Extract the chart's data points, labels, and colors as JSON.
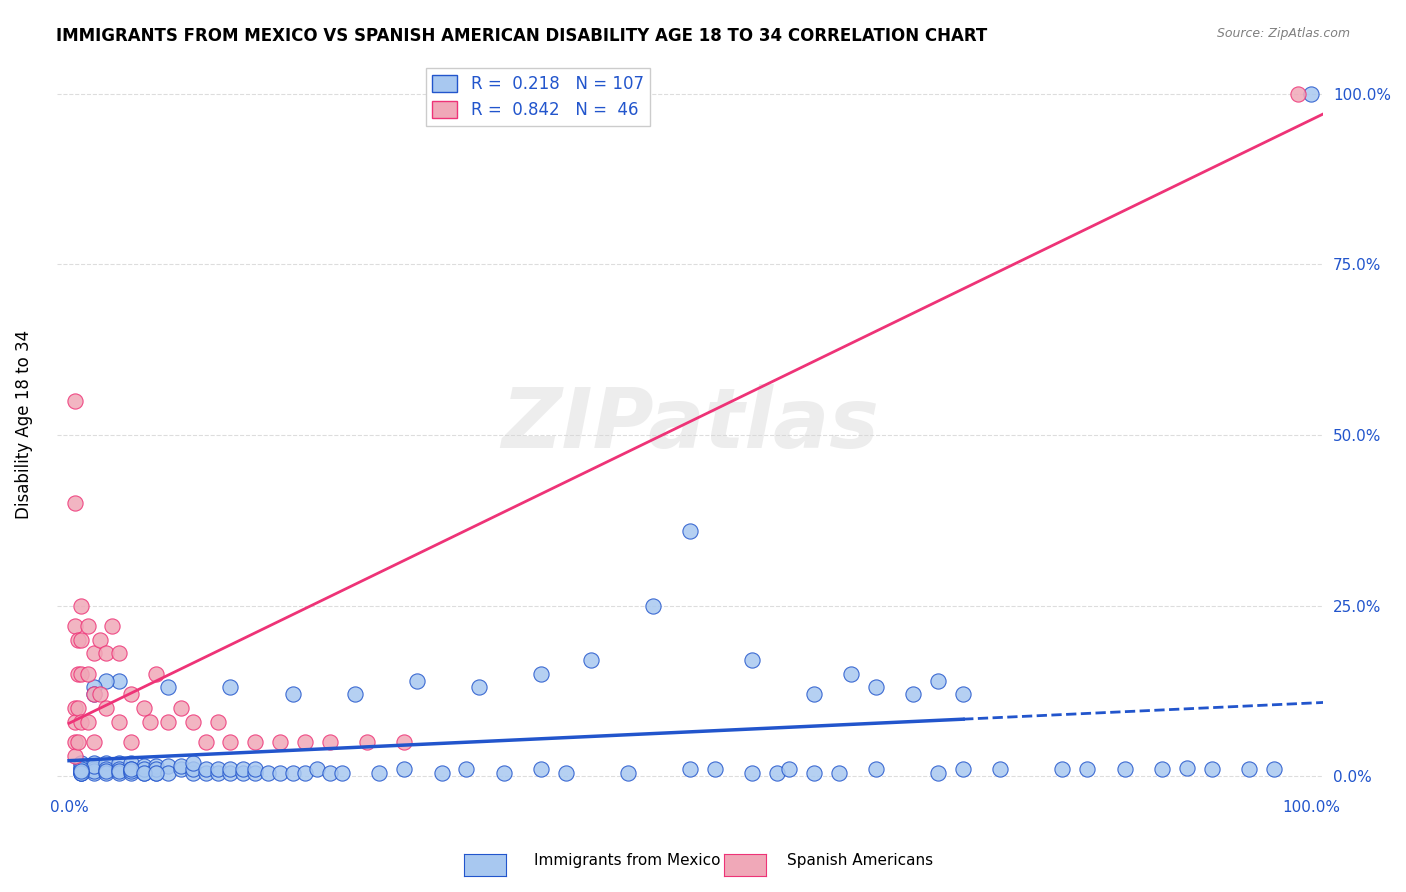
{
  "title": "IMMIGRANTS FROM MEXICO VS SPANISH AMERICAN DISABILITY AGE 18 TO 34 CORRELATION CHART",
  "source": "Source: ZipAtlas.com",
  "xlabel": "",
  "ylabel": "Disability Age 18 to 34",
  "watermark": "ZIPatlas",
  "x_tick_labels": [
    "0.0%",
    "100.0%"
  ],
  "y_tick_labels": [
    "0.0%",
    "25.0%",
    "50.0%",
    "75.0%",
    "100.0%"
  ],
  "y_tick_values": [
    0,
    0.25,
    0.5,
    0.75,
    1.0
  ],
  "blue_R": 0.218,
  "blue_N": 107,
  "pink_R": 0.842,
  "pink_N": 46,
  "blue_color": "#a8c8f0",
  "blue_line_color": "#2255cc",
  "pink_color": "#f0a8b8",
  "pink_line_color": "#ee3377",
  "legend1_label": "Immigrants from Mexico",
  "legend2_label": "Spanish Americans",
  "background_color": "#ffffff",
  "grid_color": "#dddddd",
  "blue_x": [
    0.01,
    0.01,
    0.01,
    0.01,
    0.02,
    0.02,
    0.02,
    0.02,
    0.02,
    0.03,
    0.03,
    0.03,
    0.03,
    0.04,
    0.04,
    0.04,
    0.04,
    0.05,
    0.05,
    0.05,
    0.05,
    0.06,
    0.06,
    0.06,
    0.07,
    0.07,
    0.07,
    0.08,
    0.08,
    0.09,
    0.09,
    0.1,
    0.1,
    0.1,
    0.11,
    0.11,
    0.12,
    0.12,
    0.13,
    0.13,
    0.14,
    0.14,
    0.15,
    0.15,
    0.16,
    0.17,
    0.18,
    0.19,
    0.2,
    0.21,
    0.22,
    0.25,
    0.27,
    0.3,
    0.32,
    0.35,
    0.38,
    0.4,
    0.45,
    0.5,
    0.52,
    0.55,
    0.57,
    0.58,
    0.6,
    0.62,
    0.65,
    0.7,
    0.72,
    0.75,
    0.8,
    0.82,
    0.85,
    0.88,
    0.9,
    0.92,
    0.95,
    0.97,
    1.0,
    0.5,
    0.55,
    0.6,
    0.63,
    0.65,
    0.68,
    0.7,
    0.72,
    0.47,
    0.42,
    0.38,
    0.33,
    0.28,
    0.23,
    0.18,
    0.13,
    0.08,
    0.04,
    0.03,
    0.02,
    0.02,
    0.01,
    0.01,
    0.01,
    0.01,
    0.05,
    0.06,
    0.07
  ],
  "blue_y": [
    0.02,
    0.01,
    0.005,
    0.015,
    0.02,
    0.01,
    0.005,
    0.008,
    0.015,
    0.02,
    0.01,
    0.005,
    0.008,
    0.02,
    0.01,
    0.005,
    0.008,
    0.02,
    0.01,
    0.005,
    0.008,
    0.015,
    0.005,
    0.01,
    0.015,
    0.005,
    0.01,
    0.015,
    0.005,
    0.01,
    0.015,
    0.005,
    0.01,
    0.02,
    0.005,
    0.01,
    0.005,
    0.01,
    0.005,
    0.01,
    0.005,
    0.01,
    0.005,
    0.01,
    0.005,
    0.005,
    0.005,
    0.005,
    0.01,
    0.005,
    0.005,
    0.005,
    0.01,
    0.005,
    0.01,
    0.005,
    0.01,
    0.005,
    0.005,
    0.01,
    0.01,
    0.005,
    0.005,
    0.01,
    0.005,
    0.005,
    0.01,
    0.005,
    0.01,
    0.01,
    0.01,
    0.01,
    0.01,
    0.01,
    0.012,
    0.01,
    0.01,
    0.01,
    1.0,
    0.36,
    0.17,
    0.12,
    0.15,
    0.13,
    0.12,
    0.14,
    0.12,
    0.25,
    0.17,
    0.15,
    0.13,
    0.14,
    0.12,
    0.12,
    0.13,
    0.13,
    0.14,
    0.14,
    0.13,
    0.12,
    0.005,
    0.01,
    0.005,
    0.008,
    0.01,
    0.005,
    0.005
  ],
  "pink_x": [
    0.005,
    0.005,
    0.005,
    0.005,
    0.005,
    0.007,
    0.007,
    0.007,
    0.007,
    0.01,
    0.01,
    0.01,
    0.01,
    0.015,
    0.015,
    0.015,
    0.02,
    0.02,
    0.02,
    0.025,
    0.025,
    0.03,
    0.03,
    0.035,
    0.04,
    0.04,
    0.05,
    0.05,
    0.06,
    0.065,
    0.07,
    0.08,
    0.09,
    0.1,
    0.11,
    0.12,
    0.13,
    0.15,
    0.17,
    0.19,
    0.21,
    0.24,
    0.27,
    0.99,
    0.005,
    0.005
  ],
  "pink_y": [
    0.22,
    0.1,
    0.08,
    0.05,
    0.03,
    0.2,
    0.15,
    0.1,
    0.05,
    0.25,
    0.2,
    0.15,
    0.08,
    0.22,
    0.15,
    0.08,
    0.18,
    0.12,
    0.05,
    0.2,
    0.12,
    0.18,
    0.1,
    0.22,
    0.18,
    0.08,
    0.12,
    0.05,
    0.1,
    0.08,
    0.15,
    0.08,
    0.1,
    0.08,
    0.05,
    0.08,
    0.05,
    0.05,
    0.05,
    0.05,
    0.05,
    0.05,
    0.05,
    1.0,
    0.55,
    0.4
  ]
}
